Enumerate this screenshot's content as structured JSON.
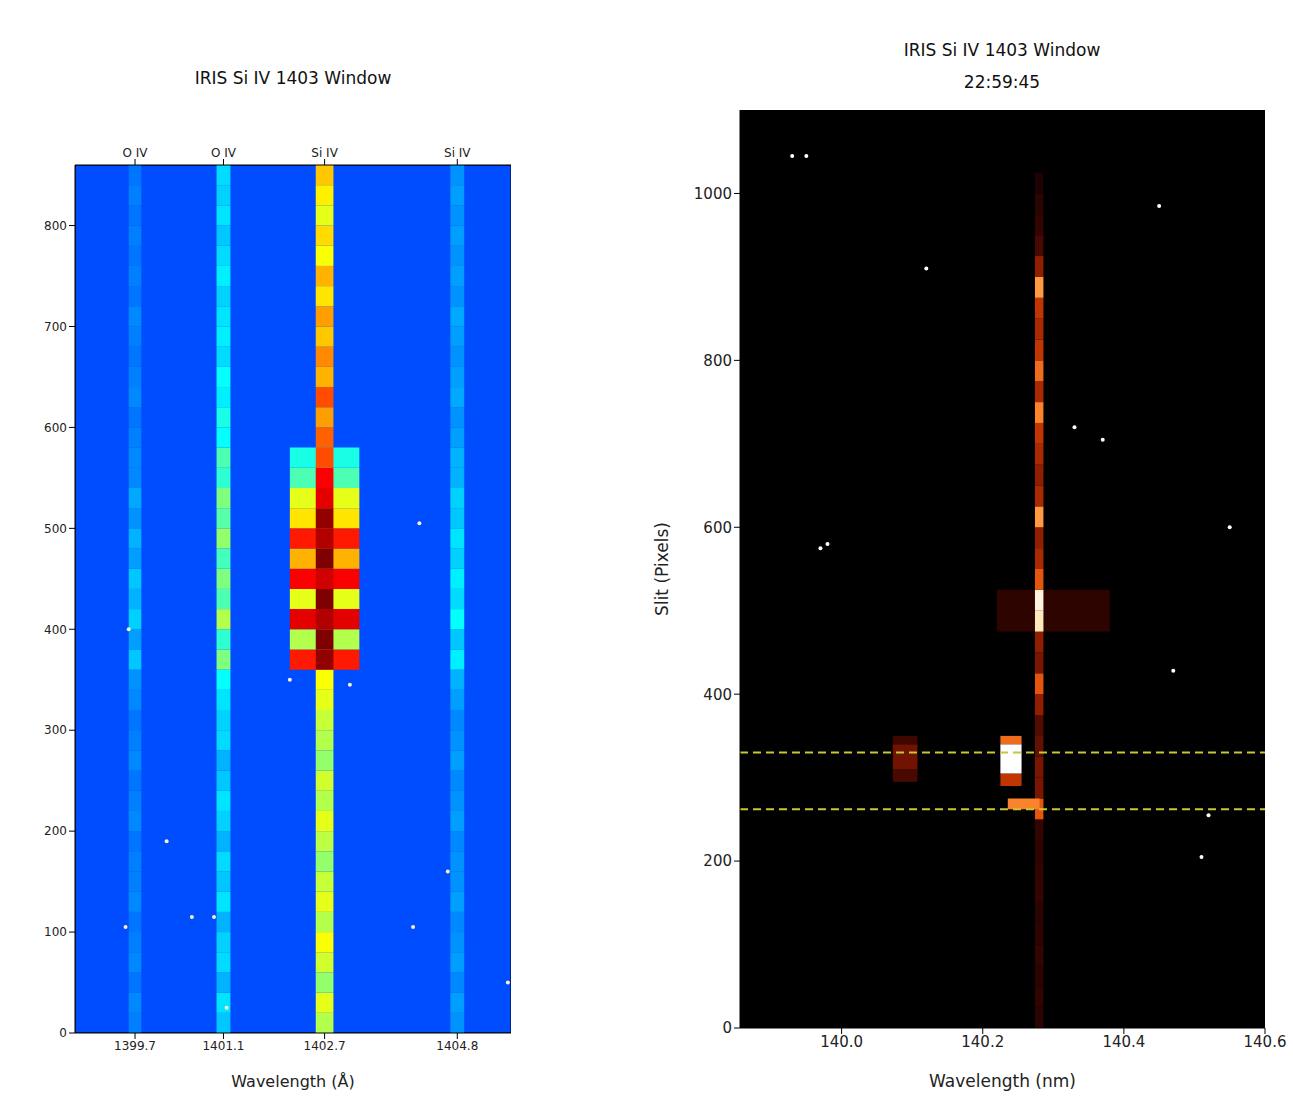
{
  "chart_data": [
    {
      "type": "heatmap",
      "title": "IRIS Si IV 1403 Window",
      "xlabel": "Wavelength (Å)",
      "xlim": [
        1398.75,
        1405.65
      ],
      "xticks": [
        1399.7,
        1401.1,
        1402.7,
        1404.8
      ],
      "x2ticks": [
        {
          "value": 1399.7,
          "label": "O IV"
        },
        {
          "value": 1401.1,
          "label": "O IV"
        },
        {
          "value": 1402.7,
          "label": "Si IV"
        },
        {
          "value": 1404.8,
          "label": "Si IV"
        }
      ],
      "ylim": [
        0,
        860
      ],
      "yticks": [
        0,
        100,
        200,
        300,
        400,
        500,
        600,
        700,
        800
      ],
      "colors": [
        "#00007f",
        "#0000ff",
        "#007fff",
        "#00ffff",
        "#7fff7f",
        "#ffff00",
        "#ff7f00",
        "#ff0000",
        "#7f0000"
      ],
      "color_range": [
        0,
        1
      ],
      "background": 0.2,
      "slit_bins": [
        0,
        20,
        40,
        60,
        80,
        100,
        120,
        140,
        160,
        180,
        200,
        220,
        240,
        260,
        280,
        300,
        320,
        340,
        360,
        380,
        400,
        420,
        440,
        460,
        480,
        500,
        520,
        540,
        560,
        580,
        600,
        620,
        640,
        660,
        680,
        700,
        720,
        740,
        760,
        780,
        800,
        820,
        840,
        860
      ],
      "lines": [
        {
          "wavelength": 1402.7,
          "width": 1.1,
          "intensity": [
            null,
            null,
            null,
            null,
            null,
            null,
            null,
            null,
            null,
            null,
            null,
            null,
            null,
            null,
            null,
            null,
            null,
            null,
            0.85,
            0.55,
            0.9,
            0.6,
            0.88,
            0.7,
            0.85,
            0.65,
            0.6,
            0.45,
            0.4,
            null,
            null,
            null,
            null,
            null,
            null,
            null,
            null,
            null,
            null,
            null,
            null,
            null,
            null
          ]
        },
        {
          "wavelength": 1399.7,
          "width": 0.2,
          "intensity": [
            0.25,
            0.26,
            0.24,
            0.26,
            0.25,
            0.24,
            0.26,
            0.25,
            0.25,
            0.24,
            0.26,
            0.25,
            0.24,
            0.26,
            0.25,
            0.24,
            0.26,
            0.27,
            0.32,
            0.28,
            0.33,
            0.3,
            0.32,
            0.28,
            0.3,
            0.27,
            0.29,
            0.26,
            0.26,
            0.25,
            0.24,
            0.26,
            0.25,
            0.24,
            0.25,
            0.26,
            0.24,
            0.25,
            0.24,
            0.25,
            0.24,
            0.25,
            0.24
          ]
        },
        {
          "wavelength": 1401.1,
          "width": 0.22,
          "intensity": [
            0.32,
            0.35,
            0.3,
            0.34,
            0.33,
            0.3,
            0.35,
            0.32,
            0.34,
            0.3,
            0.33,
            0.35,
            0.32,
            0.3,
            0.34,
            0.33,
            0.35,
            0.38,
            0.5,
            0.42,
            0.55,
            0.45,
            0.5,
            0.44,
            0.52,
            0.46,
            0.5,
            0.42,
            0.45,
            0.38,
            0.4,
            0.36,
            0.38,
            0.34,
            0.36,
            0.35,
            0.33,
            0.36,
            0.34,
            0.32,
            0.35,
            0.33,
            0.34
          ]
        },
        {
          "wavelength": 1404.8,
          "width": 0.22,
          "intensity": [
            0.27,
            0.28,
            0.26,
            0.28,
            0.27,
            0.26,
            0.28,
            0.27,
            0.27,
            0.26,
            0.28,
            0.27,
            0.26,
            0.28,
            0.27,
            0.26,
            0.28,
            0.3,
            0.36,
            0.32,
            0.38,
            0.34,
            0.36,
            0.33,
            0.35,
            0.32,
            0.33,
            0.3,
            0.3,
            0.28,
            0.27,
            0.29,
            0.28,
            0.27,
            0.28,
            0.29,
            0.27,
            0.28,
            0.27,
            0.28,
            0.27,
            0.28,
            0.27
          ]
        },
        {
          "wavelength": 1402.7,
          "width": 0.28,
          "intensity": [
            0.55,
            0.6,
            0.52,
            0.58,
            0.62,
            0.55,
            0.6,
            0.57,
            0.52,
            0.56,
            0.6,
            0.55,
            0.58,
            0.52,
            0.55,
            0.57,
            0.6,
            0.62,
            0.98,
            1.0,
            0.95,
            1.0,
            0.92,
            1.0,
            0.95,
            0.98,
            0.9,
            0.88,
            0.8,
            0.78,
            0.72,
            0.8,
            0.7,
            0.74,
            0.68,
            0.72,
            0.65,
            0.7,
            0.62,
            0.66,
            0.6,
            0.64,
            0.68
          ]
        }
      ],
      "spots": {
        "x": [
          1399.55,
          1400.2,
          1400.6,
          1400.95,
          1401.15,
          1404.2,
          1404.65,
          1405.6,
          1399.6,
          1402.15,
          1403.1,
          1404.1
        ],
        "y": [
          105,
          190,
          115,
          115,
          25,
          505,
          160,
          50,
          400,
          350,
          345,
          105
        ],
        "color": "#f8f0d0"
      }
    },
    {
      "type": "heatmap",
      "title": "IRIS Si IV 1403 Window",
      "subtitle": "22:59:45",
      "xlabel": "Wavelength (nm)",
      "ylabel": "Slit (Pixels)",
      "xlim": [
        139.856,
        140.6
      ],
      "xticks": [
        {
          "value": 140,
          "label": "140.0"
        },
        140.2,
        140.4,
        140.6
      ],
      "ylim": [
        0,
        1100
      ],
      "yticks": [
        0,
        200,
        400,
        600,
        800,
        1000
      ],
      "colors": [
        "#000000",
        "#3a0500",
        "#8a1a00",
        "#d84000",
        "#ff8a30",
        "#ffd890",
        "#ffffff"
      ],
      "color_range": [
        0,
        1
      ],
      "background": 0,
      "slit_bins": [
        0,
        25,
        50,
        75,
        100,
        125,
        150,
        175,
        200,
        225,
        250,
        275,
        300,
        325,
        350,
        375,
        400,
        425,
        450,
        475,
        500,
        525,
        550,
        575,
        600,
        625,
        650,
        675,
        700,
        725,
        750,
        775,
        800,
        825,
        850,
        875,
        900,
        925,
        950,
        975,
        1000,
        1025,
        1050,
        1075,
        1100
      ],
      "lines": [
        {
          "wavelength": 140.3,
          "width": 0.16,
          "slit_bins": [
            475,
            525
          ],
          "intensity": [
            0.13
          ]
        },
        {
          "wavelength": 140.09,
          "width": 0.035,
          "slit_bins": [
            295,
            310,
            340,
            350
          ],
          "intensity": [
            0.2,
            0.28,
            0.18
          ]
        },
        {
          "wavelength": 140.28,
          "width": 0.012,
          "intensity": [
            0.12,
            0.14,
            0.12,
            0.15,
            0.13,
            0.12,
            0.15,
            0.14,
            0.13,
            0.15,
            0.55,
            0.3,
            0.3,
            0.25,
            0.22,
            0.35,
            0.55,
            0.3,
            0.35,
            0.9,
            0.95,
            0.55,
            0.4,
            0.35,
            0.7,
            0.4,
            0.35,
            0.4,
            0.45,
            0.65,
            0.4,
            0.6,
            0.45,
            0.4,
            0.45,
            0.7,
            0.35,
            0.2,
            0.15,
            0.12,
            0.08,
            null,
            null,
            null
          ]
        },
        {
          "wavelength": 140.258,
          "width": 0.045,
          "slit_bins": [
            262,
            275
          ],
          "intensity": [
            0.65
          ]
        },
        {
          "wavelength": 140.24,
          "width": 0.03,
          "slit_bins": [
            290,
            305,
            340,
            350
          ],
          "intensity": [
            0.45,
            1.0,
            0.6
          ]
        }
      ],
      "hlines": [
        {
          "value": 330,
          "color": "#c8c832",
          "line_style": "dashed"
        },
        {
          "value": 262,
          "color": "#c8c832",
          "line_style": "dashed"
        }
      ],
      "spots": {
        "x": [
          139.93,
          139.95,
          139.98,
          139.97,
          140.12,
          140.37,
          140.47,
          140.51,
          140.52,
          140.55,
          140.33,
          140.45
        ],
        "y": [
          1045,
          1045,
          580,
          575,
          910,
          705,
          428,
          205,
          255,
          600,
          720,
          985
        ],
        "color": "#ffffff"
      }
    }
  ]
}
